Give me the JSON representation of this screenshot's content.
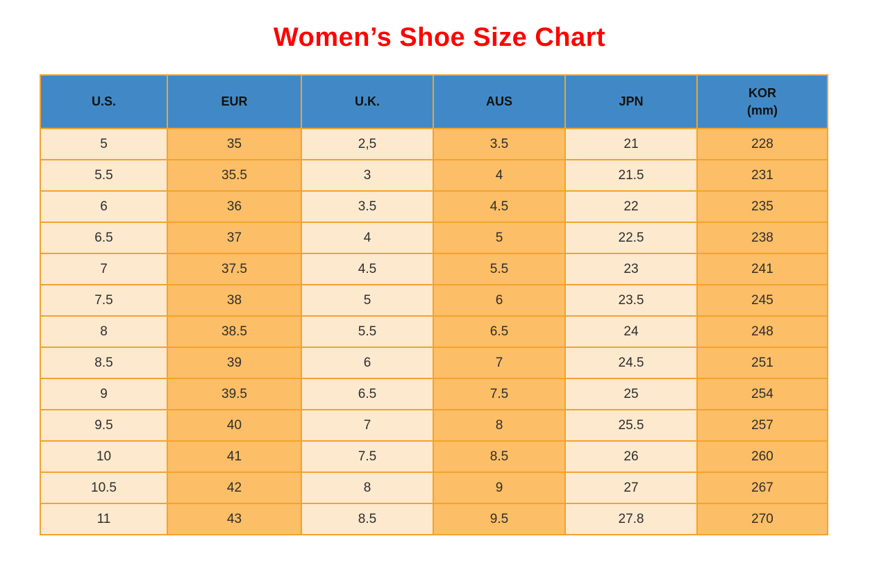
{
  "page": {
    "title": "Women’s Shoe Size Chart"
  },
  "colors": {
    "title": "#ff0000",
    "header_bg": "#4189c6",
    "header_text": "#111111",
    "col_light": "#fde9ce",
    "col_dark": "#fcbe66",
    "grid": "#f2a32e",
    "cell_text": "#2e2e2e",
    "bg": "#ffffff"
  },
  "table": {
    "columns": [
      {
        "label": "U.S."
      },
      {
        "label": "EUR"
      },
      {
        "label": "U.K."
      },
      {
        "label": "AUS"
      },
      {
        "label": "JPN"
      },
      {
        "label": "KOR",
        "sub": "(mm)"
      }
    ]
  },
  "chart_data": {
    "type": "table",
    "title": "Women’s Shoe Size Chart",
    "columns": [
      "U.S.",
      "EUR",
      "U.K.",
      "AUS",
      "JPN",
      "KOR (mm)"
    ],
    "rows": [
      [
        "5",
        "35",
        "2,5",
        "3.5",
        "21",
        "228"
      ],
      [
        "5.5",
        "35.5",
        "3",
        "4",
        "21.5",
        "231"
      ],
      [
        "6",
        "36",
        "3.5",
        "4.5",
        "22",
        "235"
      ],
      [
        "6.5",
        "37",
        "4",
        "5",
        "22.5",
        "238"
      ],
      [
        "7",
        "37.5",
        "4.5",
        "5.5",
        "23",
        "241"
      ],
      [
        "7.5",
        "38",
        "5",
        "6",
        "23.5",
        "245"
      ],
      [
        "8",
        "38.5",
        "5.5",
        "6.5",
        "24",
        "248"
      ],
      [
        "8.5",
        "39",
        "6",
        "7",
        "24.5",
        "251"
      ],
      [
        "9",
        "39.5",
        "6.5",
        "7.5",
        "25",
        "254"
      ],
      [
        "9.5",
        "40",
        "7",
        "8",
        "25.5",
        "257"
      ],
      [
        "10",
        "41",
        "7.5",
        "8.5",
        "26",
        "260"
      ],
      [
        "10.5",
        "42",
        "8",
        "9",
        "27",
        "267"
      ],
      [
        "11",
        "43",
        "8.5",
        "9.5",
        "27.8",
        "270"
      ]
    ]
  }
}
